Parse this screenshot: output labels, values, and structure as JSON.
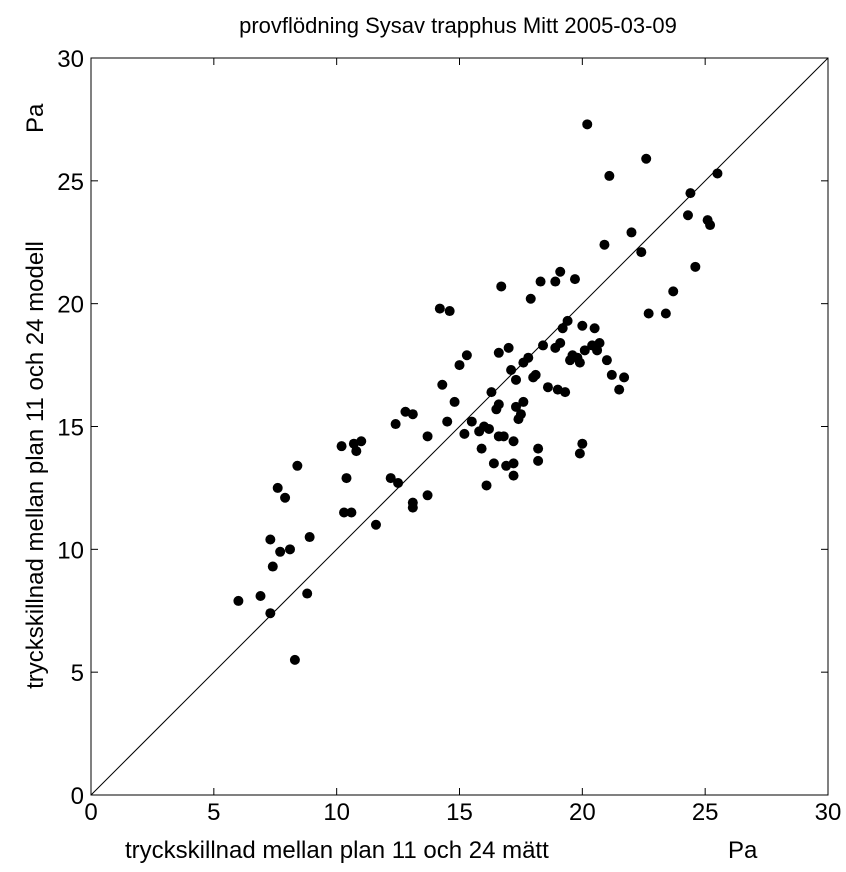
{
  "chart_data": {
    "type": "scatter",
    "title": "provflödning Sysav trapphus Mitt 2005-03-09",
    "xlabel": "tryckskillnad mellan plan 11 och 24 mätt",
    "xunit": "Pa",
    "ylabel": "tryckskillnad mellan plan 11 och 24  modell",
    "yunit": "Pa",
    "xlim": [
      0,
      30
    ],
    "ylim": [
      0,
      30
    ],
    "xticks": [
      "0",
      "5",
      "10",
      "15",
      "20",
      "25",
      "30"
    ],
    "yticks": [
      "0",
      "5",
      "10",
      "15",
      "20",
      "25",
      "30"
    ],
    "grid": false,
    "reference_line": {
      "from": [
        0,
        0
      ],
      "to": [
        30,
        30
      ]
    },
    "marker_color": "#000000",
    "series": [
      {
        "x": [
          6.0,
          6.9,
          7.3,
          7.3,
          7.4,
          7.6,
          7.7,
          7.9,
          8.1,
          8.3,
          8.4,
          8.8,
          8.9,
          10.2,
          10.3,
          10.4,
          10.6,
          10.7,
          10.8,
          11.0,
          11.6,
          12.2,
          12.4,
          12.5,
          12.8,
          13.1,
          13.1,
          13.1,
          13.7,
          13.7,
          14.2,
          14.3,
          14.5,
          14.6,
          14.8,
          15.0,
          15.2,
          15.3,
          15.5,
          15.8,
          15.9,
          16.0,
          16.1,
          16.2,
          16.3,
          16.4,
          16.5,
          16.6,
          16.6,
          16.6,
          16.7,
          16.8,
          16.9,
          17.0,
          17.1,
          17.2,
          17.2,
          17.2,
          17.3,
          17.3,
          17.4,
          17.5,
          17.6,
          17.6,
          17.8,
          17.9,
          18.0,
          18.1,
          18.2,
          18.2,
          18.3,
          18.4,
          18.6,
          18.9,
          18.9,
          19.0,
          19.1,
          19.1,
          19.2,
          19.3,
          19.4,
          19.5,
          19.6,
          19.7,
          19.8,
          19.9,
          19.9,
          20.0,
          20.0,
          20.1,
          20.2,
          20.4,
          20.5,
          20.6,
          20.7,
          20.9,
          21.0,
          21.1,
          21.2,
          21.5,
          21.7,
          22.0,
          22.4,
          22.6,
          22.7,
          23.4,
          23.7,
          24.3,
          24.4,
          24.6,
          25.1,
          25.2,
          25.5
        ],
        "y": [
          7.9,
          8.1,
          7.4,
          10.4,
          9.3,
          12.5,
          9.9,
          12.1,
          10.0,
          5.5,
          13.4,
          8.2,
          10.5,
          14.2,
          11.5,
          12.9,
          11.5,
          14.3,
          14.0,
          14.4,
          11.0,
          12.9,
          15.1,
          12.7,
          15.6,
          15.5,
          11.9,
          11.7,
          14.6,
          12.2,
          19.8,
          16.7,
          15.2,
          19.7,
          16.0,
          17.5,
          14.7,
          17.9,
          15.2,
          14.8,
          14.1,
          15.0,
          12.6,
          14.9,
          16.4,
          13.5,
          15.7,
          18.0,
          15.9,
          14.6,
          20.7,
          14.6,
          13.4,
          18.2,
          17.3,
          14.4,
          13.0,
          13.5,
          15.8,
          16.9,
          15.3,
          15.5,
          17.6,
          16.0,
          17.8,
          20.2,
          17.0,
          17.1,
          14.1,
          13.6,
          20.9,
          18.3,
          16.6,
          18.2,
          20.9,
          16.5,
          18.4,
          21.3,
          19.0,
          16.4,
          19.3,
          17.7,
          17.9,
          21.0,
          17.8,
          17.6,
          13.9,
          19.1,
          14.3,
          18.1,
          27.3,
          18.3,
          19.0,
          18.1,
          18.4,
          22.4,
          17.7,
          25.2,
          17.1,
          16.5,
          17.0,
          22.9,
          22.1,
          25.9,
          19.6,
          19.6,
          20.5,
          23.6,
          24.5,
          21.5,
          23.4,
          23.2,
          25.3
        ]
      }
    ]
  }
}
